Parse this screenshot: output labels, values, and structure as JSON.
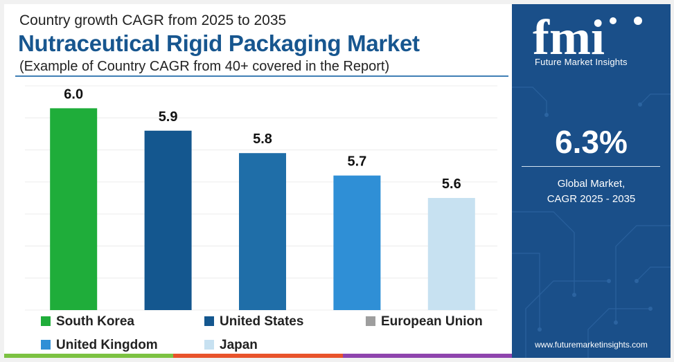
{
  "header": {
    "subtitle": "Country growth CAGR from 2025 to 2035",
    "title": "Nutraceutical Rigid Packaging Market",
    "note": "(Example of Country CAGR from 40+ covered in the Report)"
  },
  "brand": {
    "logo_text": "fmi",
    "logo_sub": "Future Market Insights",
    "website": "www.futuremarketinsights.com"
  },
  "highlight": {
    "value": "6.3%",
    "label_line1": "Global Market,",
    "label_line2": "CAGR 2025 - 2035"
  },
  "colors": {
    "panel": "#1a4f89",
    "south_korea": "#1fad3a",
    "united_states": "#14578f",
    "european_union": "#9e9e9e",
    "united_kingdom": "#2f8fd6",
    "japan": "#c7e1f1"
  },
  "chart_data": {
    "type": "bar",
    "categories": [
      "South Korea",
      "United States",
      "European Union",
      "United Kingdom",
      "Japan"
    ],
    "values": [
      6.0,
      5.9,
      5.8,
      5.7,
      5.6
    ],
    "value_labels": [
      "6.0",
      "5.9",
      "5.8",
      "5.7",
      "5.6"
    ],
    "bar_colors": [
      "#1fad3a",
      "#14578f",
      "#1f6ea8",
      "#2f8fd6",
      "#c7e1f1"
    ],
    "ylim": [
      5.1,
      6.1
    ],
    "grid": true,
    "legend": [
      {
        "label": "South Korea",
        "color": "#1fad3a"
      },
      {
        "label": "United States",
        "color": "#14578f"
      },
      {
        "label": "European Union",
        "color": "#9e9e9e"
      },
      {
        "label": "United Kingdom",
        "color": "#2f8fd6"
      },
      {
        "label": "Japan",
        "color": "#c7e1f1"
      }
    ],
    "legend_position": "bottom"
  }
}
